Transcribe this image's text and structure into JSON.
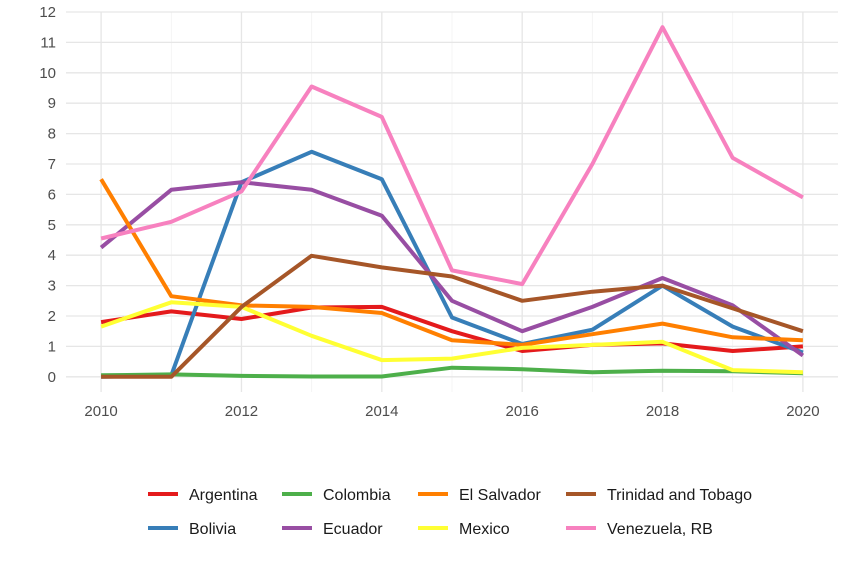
{
  "chart_data": {
    "type": "line",
    "title": "",
    "xlabel": "",
    "ylabel": "",
    "x": [
      2010,
      2011,
      2012,
      2013,
      2014,
      2015,
      2016,
      2017,
      2018,
      2019,
      2020
    ],
    "xlim": [
      2009.5,
      2020.5
    ],
    "ylim": [
      -0.5,
      12
    ],
    "x_ticks": [
      2010,
      2012,
      2014,
      2016,
      2018,
      2020
    ],
    "y_ticks": [
      0,
      1,
      2,
      3,
      4,
      5,
      6,
      7,
      8,
      9,
      10,
      11,
      12
    ],
    "grid": true,
    "legend_position": "bottom",
    "series": [
      {
        "name": "Argentina",
        "color": "#e41a1c",
        "values": [
          1.8,
          2.15,
          1.9,
          2.28,
          2.3,
          1.5,
          0.85,
          1.05,
          1.1,
          0.85,
          1.0
        ]
      },
      {
        "name": "Bolivia",
        "color": "#377eb8",
        "values": [
          0.0,
          0.05,
          6.4,
          7.4,
          6.5,
          1.95,
          1.08,
          1.55,
          3.0,
          1.65,
          0.8
        ]
      },
      {
        "name": "Colombia",
        "color": "#4daf4a",
        "values": [
          0.05,
          0.08,
          0.03,
          0.01,
          0.01,
          0.3,
          0.25,
          0.15,
          0.2,
          0.18,
          0.12
        ]
      },
      {
        "name": "Ecuador",
        "color": "#984ea3",
        "values": [
          4.25,
          6.15,
          6.4,
          6.15,
          5.3,
          2.5,
          1.5,
          2.3,
          3.25,
          2.35,
          0.7
        ]
      },
      {
        "name": "El Salvador",
        "color": "#ff7f00",
        "values": [
          6.5,
          2.65,
          2.35,
          2.3,
          2.1,
          1.2,
          1.05,
          1.4,
          1.75,
          1.3,
          1.2
        ]
      },
      {
        "name": "Mexico",
        "color": "#ffff33",
        "values": [
          1.65,
          2.45,
          2.3,
          1.35,
          0.55,
          0.6,
          0.95,
          1.05,
          1.15,
          0.22,
          0.15
        ]
      },
      {
        "name": "Trinidad and Tobago",
        "color": "#a65628",
        "values": [
          0.0,
          0.0,
          2.3,
          3.98,
          3.6,
          3.3,
          2.5,
          2.8,
          3.0,
          2.25,
          1.5
        ]
      },
      {
        "name": "Venezuela, RB",
        "color": "#f781bf",
        "values": [
          4.55,
          5.1,
          6.1,
          9.55,
          8.55,
          3.5,
          3.05,
          7.0,
          11.5,
          7.2,
          5.9
        ]
      }
    ],
    "legend_rows": [
      [
        "Argentina",
        "Colombia",
        "El Salvador",
        "Trinidad and Tobago"
      ],
      [
        "Bolivia",
        "Ecuador",
        "Mexico",
        "Venezuela, RB"
      ]
    ]
  }
}
